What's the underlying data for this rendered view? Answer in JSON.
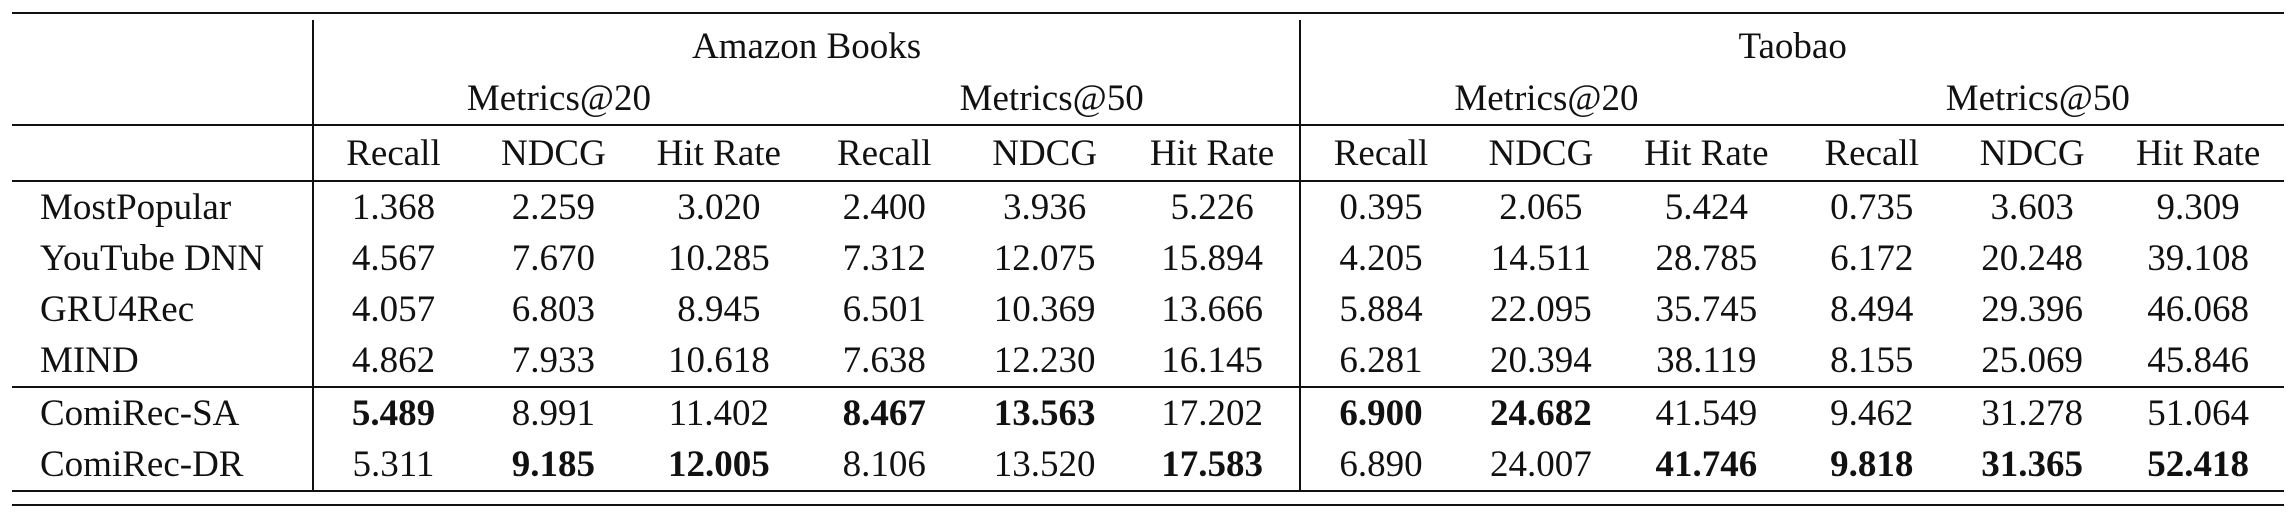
{
  "table": {
    "datasets": [
      "Amazon Books",
      "Taobao"
    ],
    "metric_groups": [
      "Metrics@20",
      "Metrics@50",
      "Metrics@20",
      "Metrics@50"
    ],
    "columns": [
      "Recall",
      "NDCG",
      "Hit Rate",
      "Recall",
      "NDCG",
      "Hit Rate",
      "Recall",
      "NDCG",
      "Hit Rate",
      "Recall",
      "NDCG",
      "Hit Rate"
    ],
    "rows": [
      {
        "name": "MostPopular",
        "values": [
          "1.368",
          "2.259",
          "3.020",
          "2.400",
          "3.936",
          "5.226",
          "0.395",
          "2.065",
          "5.424",
          "0.735",
          "3.603",
          "9.309"
        ]
      },
      {
        "name": "YouTube DNN",
        "values": [
          "4.567",
          "7.670",
          "10.285",
          "7.312",
          "12.075",
          "15.894",
          "4.205",
          "14.511",
          "28.785",
          "6.172",
          "20.248",
          "39.108"
        ]
      },
      {
        "name": "GRU4Rec",
        "values": [
          "4.057",
          "6.803",
          "8.945",
          "6.501",
          "10.369",
          "13.666",
          "5.884",
          "22.095",
          "35.745",
          "8.494",
          "29.396",
          "46.068"
        ]
      },
      {
        "name": "MIND",
        "values": [
          "4.862",
          "7.933",
          "10.618",
          "7.638",
          "12.230",
          "16.145",
          "6.281",
          "20.394",
          "38.119",
          "8.155",
          "25.069",
          "45.846"
        ]
      },
      {
        "name": "ComiRec-SA",
        "values": [
          "5.489",
          "8.991",
          "11.402",
          "8.467",
          "13.563",
          "17.202",
          "6.900",
          "24.682",
          "41.549",
          "9.462",
          "31.278",
          "51.064"
        ],
        "bold": [
          true,
          false,
          false,
          true,
          true,
          false,
          true,
          true,
          false,
          false,
          false,
          false
        ]
      },
      {
        "name": "ComiRec-DR",
        "values": [
          "5.311",
          "9.185",
          "12.005",
          "8.106",
          "13.520",
          "17.583",
          "6.890",
          "24.007",
          "41.746",
          "9.818",
          "31.365",
          "52.418"
        ],
        "bold": [
          false,
          true,
          true,
          false,
          false,
          true,
          false,
          false,
          true,
          true,
          true,
          true
        ]
      }
    ]
  }
}
